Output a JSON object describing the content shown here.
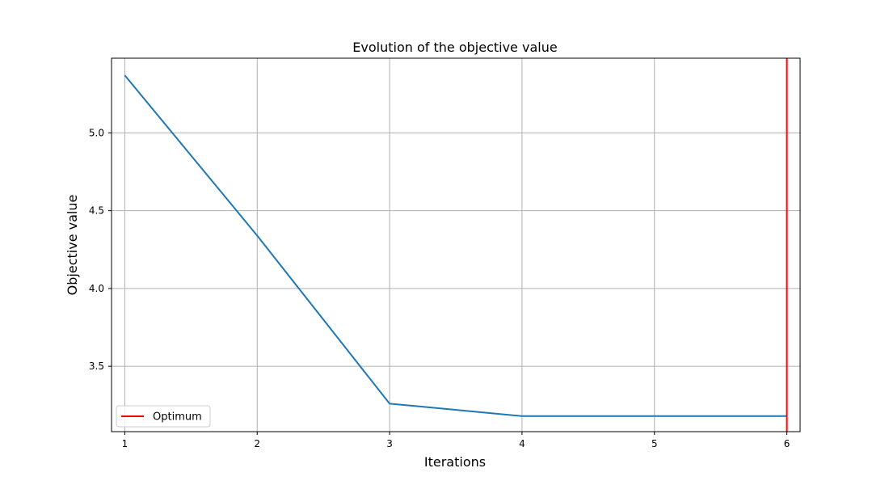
{
  "chart_data": {
    "type": "line",
    "title": "Evolution of the objective value",
    "xlabel": "Iterations",
    "ylabel": "Objective value",
    "x": [
      1,
      2,
      3,
      4,
      5,
      6
    ],
    "series": [
      {
        "values": [
          5.37,
          4.34,
          3.26,
          3.18,
          3.18,
          3.18
        ],
        "color": "#1f77b4"
      }
    ],
    "vline": {
      "x": 6,
      "label": "Optimum",
      "color": "#ff0000"
    },
    "xticks": [
      "1",
      "2",
      "3",
      "4",
      "5",
      "6"
    ],
    "yticks": [
      "3.5",
      "4.0",
      "4.5",
      "5.0"
    ],
    "ytick_values": [
      3.5,
      4.0,
      4.5,
      5.0
    ],
    "xlim": [
      0.9,
      6.1
    ],
    "ylim": [
      3.08,
      5.48
    ],
    "grid": true,
    "legend": {
      "position": "lower-left",
      "entries": [
        "Optimum"
      ]
    }
  }
}
